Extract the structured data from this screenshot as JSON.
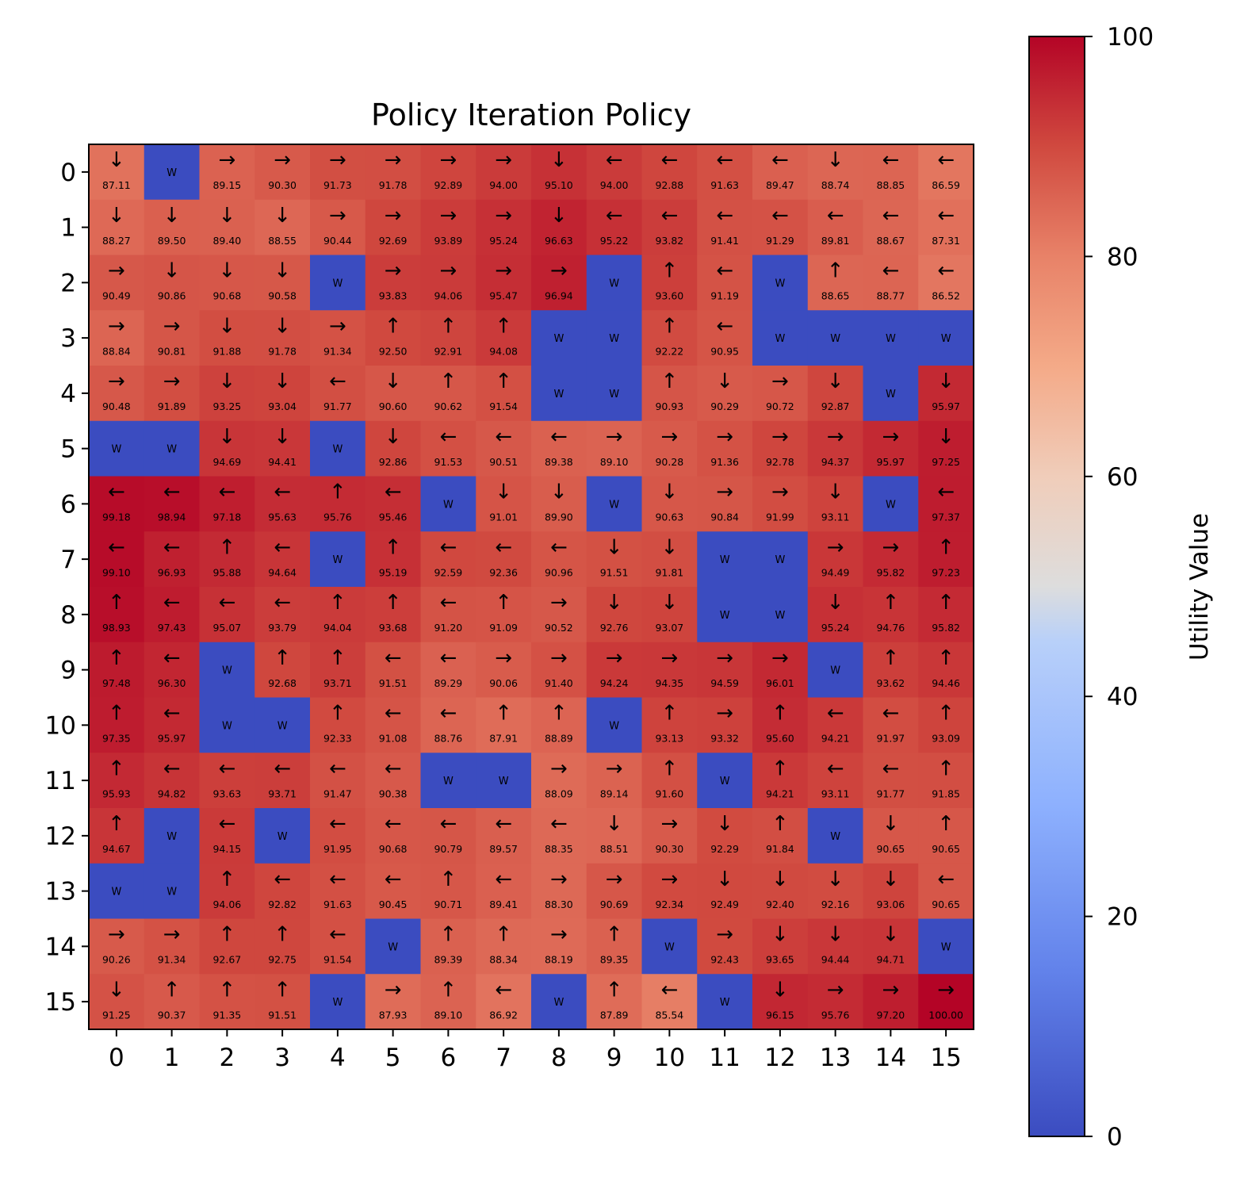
{
  "chart_data": {
    "type": "heatmap",
    "title": "Policy Iteration Policy",
    "xlabel": "",
    "ylabel": "",
    "x_ticks": [
      "0",
      "1",
      "2",
      "3",
      "4",
      "5",
      "6",
      "7",
      "8",
      "9",
      "10",
      "11",
      "12",
      "13",
      "14",
      "15"
    ],
    "y_ticks": [
      "0",
      "1",
      "2",
      "3",
      "4",
      "5",
      "6",
      "7",
      "8",
      "9",
      "10",
      "11",
      "12",
      "13",
      "14",
      "15"
    ],
    "colormap": "coolwarm",
    "value_range": [
      0,
      100
    ],
    "wall_label": "W",
    "wall_color": "#3b4cc0",
    "colorbar": {
      "label": "Utility Value",
      "ticks": [
        "0",
        "20",
        "40",
        "60",
        "80",
        "100"
      ],
      "tick_values": [
        0,
        20,
        40,
        60,
        80,
        100
      ],
      "position": "right"
    },
    "cells": [
      [
        "↓ 87.11",
        "W",
        "→ 89.15",
        "→ 90.30",
        "→ 91.73",
        "→ 91.78",
        "→ 92.89",
        "→ 94.00",
        "↓ 95.10",
        "← 94.00",
        "← 92.88",
        "← 91.63",
        "← 89.47",
        "↓ 88.74",
        "← 88.85",
        "← 86.59"
      ],
      [
        "↓ 88.27",
        "↓ 89.50",
        "↓ 89.40",
        "↓ 88.55",
        "→ 90.44",
        "→ 92.69",
        "→ 93.89",
        "→ 95.24",
        "↓ 96.63",
        "← 95.22",
        "← 93.82",
        "← 91.41",
        "← 91.29",
        "← 89.81",
        "← 88.67",
        "← 87.31"
      ],
      [
        "→ 90.49",
        "↓ 90.86",
        "↓ 90.68",
        "↓ 90.58",
        "W",
        "→ 93.83",
        "→ 94.06",
        "→ 95.47",
        "→ 96.94",
        "W",
        "↑ 93.60",
        "← 91.19",
        "W",
        "↑ 88.65",
        "← 88.77",
        "← 86.52"
      ],
      [
        "→ 88.84",
        "→ 90.81",
        "↓ 91.88",
        "↓ 91.78",
        "→ 91.34",
        "↑ 92.50",
        "↑ 92.91",
        "↑ 94.08",
        "W",
        "W",
        "↑ 92.22",
        "← 90.95",
        "W",
        "W",
        "W",
        "W"
      ],
      [
        "→ 90.48",
        "→ 91.89",
        "↓ 93.25",
        "↓ 93.04",
        "← 91.77",
        "↓ 90.60",
        "↑ 90.62",
        "↑ 91.54",
        "W",
        "W",
        "↑ 90.93",
        "↓ 90.29",
        "→ 90.72",
        "↓ 92.87",
        "W",
        "↓ 95.97"
      ],
      [
        "W",
        "W",
        "↓ 94.69",
        "↓ 94.41",
        "W",
        "↓ 92.86",
        "← 91.53",
        "← 90.51",
        "← 89.38",
        "→ 89.10",
        "→ 90.28",
        "→ 91.36",
        "→ 92.78",
        "→ 94.37",
        "→ 95.97",
        "↓ 97.25"
      ],
      [
        "← 99.18",
        "← 98.94",
        "← 97.18",
        "← 95.63",
        "↑ 95.76",
        "← 95.46",
        "W",
        "↓ 91.01",
        "↓ 89.90",
        "W",
        "↓ 90.63",
        "→ 90.84",
        "→ 91.99",
        "↓ 93.11",
        "W",
        "← 97.37"
      ],
      [
        "← 99.10",
        "← 96.93",
        "↑ 95.88",
        "← 94.64",
        "W",
        "↑ 95.19",
        "← 92.59",
        "← 92.36",
        "← 90.96",
        "↓ 91.51",
        "↓ 91.81",
        "W",
        "W",
        "→ 94.49",
        "→ 95.82",
        "↑ 97.23"
      ],
      [
        "↑ 98.93",
        "← 97.43",
        "← 95.07",
        "← 93.79",
        "↑ 94.04",
        "↑ 93.68",
        "← 91.20",
        "↑ 91.09",
        "→ 90.52",
        "↓ 92.76",
        "↓ 93.07",
        "W",
        "W",
        "↓ 95.24",
        "↑ 94.76",
        "↑ 95.82"
      ],
      [
        "↑ 97.48",
        "← 96.30",
        "W",
        "↑ 92.68",
        "↑ 93.71",
        "← 91.51",
        "← 89.29",
        "→ 90.06",
        "→ 91.40",
        "→ 94.24",
        "→ 94.35",
        "→ 94.59",
        "→ 96.01",
        "W",
        "↑ 93.62",
        "↑ 94.46"
      ],
      [
        "↑ 97.35",
        "← 95.97",
        "W",
        "W",
        "↑ 92.33",
        "← 91.08",
        "← 88.76",
        "↑ 87.91",
        "↑ 88.89",
        "W",
        "↑ 93.13",
        "→ 93.32",
        "↑ 95.60",
        "← 94.21",
        "← 91.97",
        "↑ 93.09"
      ],
      [
        "↑ 95.93",
        "← 94.82",
        "← 93.63",
        "← 93.71",
        "← 91.47",
        "← 90.38",
        "W",
        "W",
        "→ 88.09",
        "→ 89.14",
        "↑ 91.60",
        "W",
        "↑ 94.21",
        "← 93.11",
        "← 91.77",
        "↑ 91.85"
      ],
      [
        "↑ 94.67",
        "W",
        "← 94.15",
        "W",
        "← 91.95",
        "← 90.68",
        "← 90.79",
        "← 89.57",
        "← 88.35",
        "↓ 88.51",
        "→ 90.30",
        "↓ 92.29",
        "↑ 91.84",
        "W",
        "↓ 90.65",
        "↑ 90.65"
      ],
      [
        "W",
        "W",
        "↑ 94.06",
        "← 92.82",
        "← 91.63",
        "← 90.45",
        "↑ 90.71",
        "← 89.41",
        "→ 88.30",
        "→ 90.69",
        "→ 92.34",
        "↓ 92.49",
        "↓ 92.40",
        "↓ 92.16",
        "↓ 93.06",
        "← 90.65"
      ],
      [
        "→ 90.26",
        "→ 91.34",
        "↑ 92.67",
        "↑ 92.75",
        "← 91.54",
        "W",
        "↑ 89.39",
        "↑ 88.34",
        "→ 88.19",
        "↑ 89.35",
        "W",
        "→ 92.43",
        "↓ 93.65",
        "↓ 94.44",
        "↓ 94.71",
        "W"
      ],
      [
        "↓ 91.25",
        "↑ 90.37",
        "↑ 91.35",
        "↑ 91.51",
        "W",
        "→ 87.93",
        "↑ 89.10",
        "← 86.92",
        "W",
        "↑ 87.89",
        "← 85.54",
        "W",
        "↓ 96.15",
        "→ 95.76",
        "→ 97.20",
        "→ 100.00"
      ]
    ]
  }
}
